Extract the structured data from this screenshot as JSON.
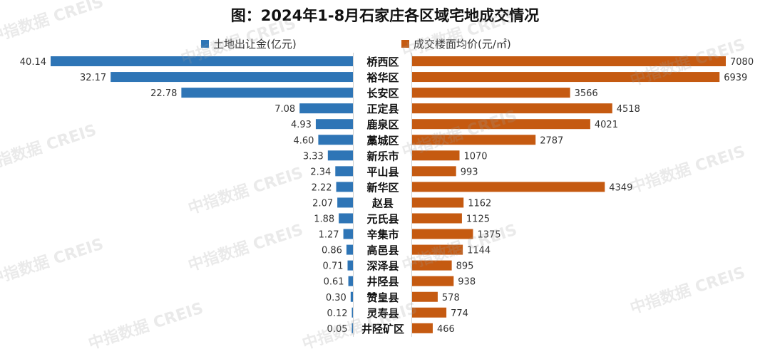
{
  "chart_data": {
    "type": "bar",
    "title": "图：2024年1-8月石家庄各区域宅地成交情况",
    "orientation": "horizontal-butterfly",
    "categories": [
      "桥西区",
      "裕华区",
      "长安区",
      "正定县",
      "鹿泉区",
      "藁城区",
      "新乐市",
      "平山县",
      "新华区",
      "赵县",
      "元氏县",
      "辛集市",
      "高邑县",
      "深泽县",
      "井陉县",
      "赞皇县",
      "灵寿县",
      "井陉矿区"
    ],
    "series": [
      {
        "name": "土地出让金(亿元)",
        "side": "left",
        "color": "#2E75B6",
        "values": [
          40.14,
          32.17,
          22.78,
          7.08,
          4.93,
          4.6,
          3.33,
          2.34,
          2.22,
          2.07,
          1.88,
          1.27,
          0.86,
          0.71,
          0.61,
          0.3,
          0.12,
          0.05
        ],
        "labels": [
          "40.14",
          "32.17",
          "22.78",
          "7.08",
          "4.93",
          "4.60",
          "3.33",
          "2.34",
          "2.22",
          "2.07",
          "1.88",
          "1.27",
          "0.86",
          "0.71",
          "0.61",
          "0.30",
          "0.12",
          "0.05"
        ]
      },
      {
        "name": "成交楼面均价(元/㎡)",
        "side": "right",
        "color": "#C55A11",
        "values": [
          7080,
          6939,
          3566,
          4518,
          4021,
          2787,
          1070,
          993,
          4349,
          1162,
          1125,
          1375,
          1144,
          895,
          938,
          578,
          774,
          466
        ],
        "labels": [
          "7080",
          "6939",
          "3566",
          "4518",
          "4021",
          "2787",
          "1070",
          "993",
          "4349",
          "1162",
          "1125",
          "1375",
          "1144",
          "895",
          "938",
          "578",
          "774",
          "466"
        ]
      }
    ],
    "legend_position": "top",
    "grid": false
  },
  "watermark": {
    "text": "中指数据 CREIS"
  }
}
